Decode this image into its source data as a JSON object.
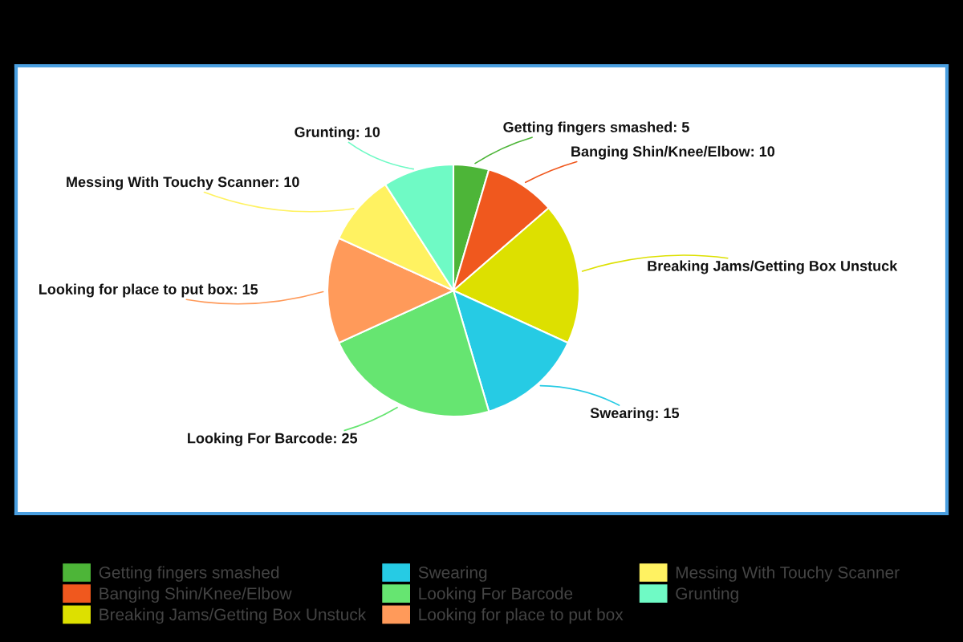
{
  "chart_data": {
    "type": "pie",
    "categories": [
      "Getting fingers smashed",
      "Banging Shin/Knee/Elbow",
      "Breaking Jams/Getting Box Unstuck",
      "Swearing",
      "Looking For Barcode",
      "Looking for place to put box",
      "Messing With Touchy Scanner",
      "Grunting"
    ],
    "values": [
      5,
      10,
      20,
      15,
      25,
      15,
      10,
      10
    ],
    "value_labels": [
      "Getting fingers smashed: 5",
      "Banging Shin/Knee/Elbow: 10",
      null,
      "Swearing: 15",
      "Looking For Barcode: 25",
      "Looking for place to put box: 15",
      "Messing With Touchy Scanner: 10",
      "Grunting: 10"
    ],
    "colors": [
      "#4db538",
      "#f0581e",
      "#dde000",
      "#26cbe4",
      "#66e571",
      "#ff9a5a",
      "#fff261",
      "#6ffac5"
    ],
    "legend": "bottom"
  }
}
